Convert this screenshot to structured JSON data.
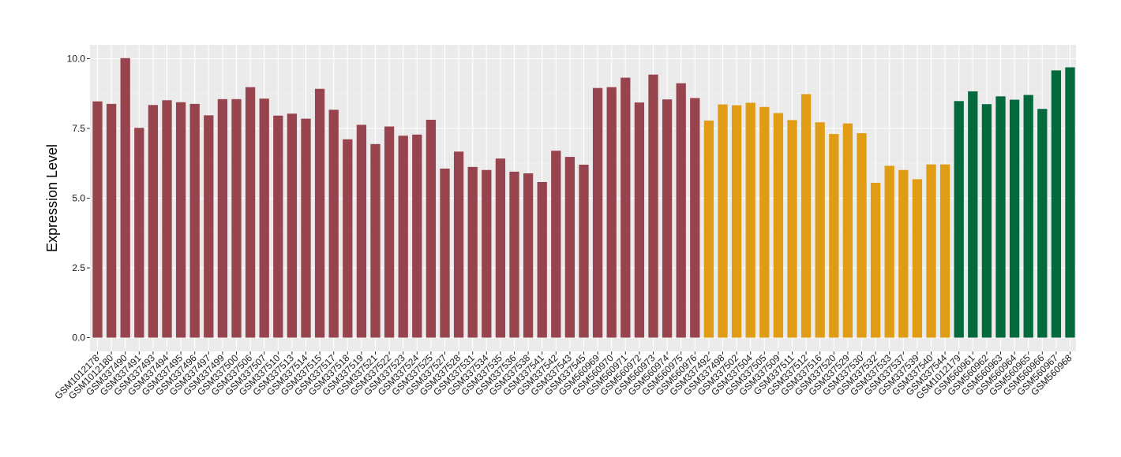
{
  "chart_data": {
    "type": "bar",
    "title": "",
    "xlabel": "",
    "ylabel": "Expression Level",
    "ylim": [
      0,
      10.4
    ],
    "yticks": [
      "0.0",
      "2.5",
      "5.0",
      "7.5",
      "10.0"
    ],
    "ytick_values": [
      0,
      2.5,
      5,
      7.5,
      10
    ],
    "grid": true,
    "legend": "none",
    "categories": [
      "GSM1012178",
      "GSM1012180",
      "GSM337490",
      "GSM337491",
      "GSM337493",
      "GSM337494",
      "GSM337495",
      "GSM337496",
      "GSM337497",
      "GSM337499",
      "GSM337500",
      "GSM337506",
      "GSM337507",
      "GSM337510",
      "GSM337513",
      "GSM337514",
      "GSM337515",
      "GSM337517",
      "GSM337518",
      "GSM337519",
      "GSM337521",
      "GSM337522",
      "GSM337523",
      "GSM337524",
      "GSM337525",
      "GSM337527",
      "GSM337528",
      "GSM337531",
      "GSM337534",
      "GSM337535",
      "GSM337536",
      "GSM337538",
      "GSM337541",
      "GSM337542",
      "GSM337543",
      "GSM337545",
      "GSM560969",
      "GSM560970",
      "GSM560971",
      "GSM560972",
      "GSM560973",
      "GSM560974",
      "GSM560975",
      "GSM560976",
      "GSM337492",
      "GSM337498",
      "GSM337502",
      "GSM337504",
      "GSM337505",
      "GSM337509",
      "GSM337511",
      "GSM337512",
      "GSM337516",
      "GSM337520",
      "GSM337529",
      "GSM337530",
      "GSM337532",
      "GSM337533",
      "GSM337537",
      "GSM337539",
      "GSM337540",
      "GSM337544",
      "GSM1012179",
      "GSM560961",
      "GSM560962",
      "GSM560963",
      "GSM560964",
      "GSM560965",
      "GSM560966",
      "GSM560967",
      "GSM560968"
    ],
    "values": [
      8.47,
      8.38,
      10.02,
      7.52,
      8.34,
      8.51,
      8.44,
      8.38,
      7.97,
      8.55,
      8.55,
      8.98,
      8.57,
      7.96,
      8.03,
      7.85,
      8.92,
      8.17,
      7.11,
      7.63,
      6.94,
      7.57,
      7.24,
      7.28,
      7.81,
      6.06,
      6.67,
      6.12,
      6.01,
      6.42,
      5.95,
      5.89,
      5.58,
      6.7,
      6.48,
      6.2,
      8.95,
      8.98,
      9.32,
      8.43,
      9.43,
      8.54,
      9.12,
      8.59,
      7.78,
      8.36,
      8.33,
      8.42,
      8.27,
      8.05,
      7.8,
      8.73,
      7.72,
      7.3,
      7.68,
      7.33,
      5.55,
      6.16,
      6.01,
      5.68,
      6.21,
      6.21,
      8.48,
      8.83,
      8.37,
      8.65,
      8.53,
      8.7,
      8.2,
      9.58,
      9.69
    ],
    "groups": [
      0,
      0,
      0,
      0,
      0,
      0,
      0,
      0,
      0,
      0,
      0,
      0,
      0,
      0,
      0,
      0,
      0,
      0,
      0,
      0,
      0,
      0,
      0,
      0,
      0,
      0,
      0,
      0,
      0,
      0,
      0,
      0,
      0,
      0,
      0,
      0,
      0,
      0,
      0,
      0,
      0,
      0,
      0,
      0,
      1,
      1,
      1,
      1,
      1,
      1,
      1,
      1,
      1,
      1,
      1,
      1,
      1,
      1,
      1,
      1,
      1,
      1,
      2,
      2,
      2,
      2,
      2,
      2,
      2,
      2,
      2
    ],
    "group_colors": [
      "#98444f",
      "#e09c14",
      "#04693d"
    ]
  },
  "style": {
    "panel_bg": "#ebebeb",
    "grid_major": "#ffffff",
    "grid_minor": "#f4f4f4"
  }
}
